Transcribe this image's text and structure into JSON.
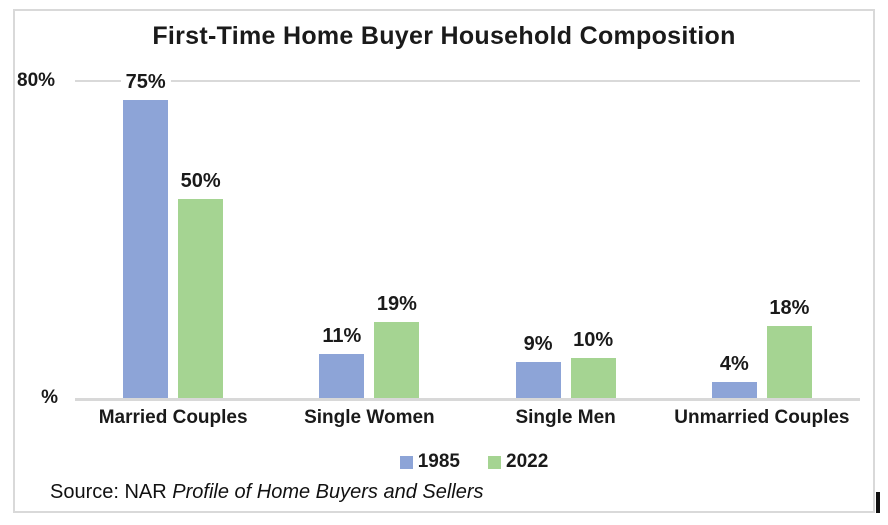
{
  "title": "First-Time Home Buyer Household Composition",
  "chart_data": {
    "type": "bar",
    "title": "First-Time Home Buyer Household Composition",
    "categories": [
      "Married Couples",
      "Single Women",
      "Single Men",
      "Unmarried Couples"
    ],
    "series": [
      {
        "name": "1985",
        "color": "#8DA4D7",
        "values": [
          75,
          11,
          9,
          4
        ]
      },
      {
        "name": "2022",
        "color": "#A5D492",
        "values": [
          50,
          19,
          10,
          18
        ]
      }
    ],
    "data_labels": [
      [
        "75%",
        "11%",
        "9%",
        "4%"
      ],
      [
        "50%",
        "19%",
        "10%",
        "18%"
      ]
    ],
    "data_label_format": "{v}%",
    "xlabel": "",
    "ylabel": "",
    "ylim": [
      0,
      80
    ],
    "y_axis": {
      "top_label": "80%",
      "bottom_label": "%"
    },
    "gridlines": [
      80
    ],
    "grid": "single horizontal gridline at 80%",
    "legend_position": "bottom-center"
  },
  "source": {
    "prefix": "Source: NAR ",
    "italic": "Profile of Home Buyers and Sellers"
  },
  "colors": {
    "series_1985": "#8DA4D7",
    "series_2022": "#A5D492",
    "gridline": "#d9d9d9",
    "frame_border": "#d9d9d9",
    "text": "#1a1a1a"
  }
}
